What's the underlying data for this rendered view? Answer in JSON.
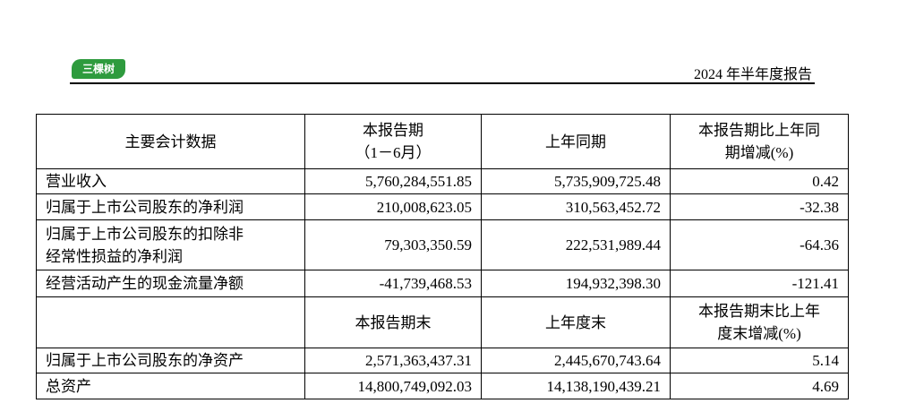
{
  "header": {
    "logo": "三棵树",
    "report_title": "2024 年半年度报告"
  },
  "table": {
    "header": [
      "主要会计数据",
      "本报告期\n（1－6月）",
      "上年同期",
      "本报告期比上年同\n期增减(%)"
    ],
    "rows": [
      [
        "营业收入",
        "5,760,284,551.85",
        "5,735,909,725.48",
        "0.42"
      ],
      [
        "归属于上市公司股东的净利润",
        "210,008,623.05",
        "310,563,452.72",
        "-32.38"
      ],
      [
        "归属于上市公司股东的扣除非\n经常性损益的净利润",
        "79,303,350.59",
        "222,531,989.44",
        "-64.36"
      ],
      [
        "经营活动产生的现金流量净额",
        "-41,739,468.53",
        "194,932,398.30",
        "-121.41"
      ]
    ],
    "subheader": [
      "本报告期末",
      "上年度末",
      "本报告期末比上年\n度末增减(%)"
    ],
    "rows2": [
      [
        "归属于上市公司股东的净资产",
        "2,571,363,437.31",
        "2,445,670,743.64",
        "5.14"
      ],
      [
        "总资产",
        "14,800,749,092.03",
        "14,138,190,439.21",
        "4.69"
      ]
    ]
  }
}
